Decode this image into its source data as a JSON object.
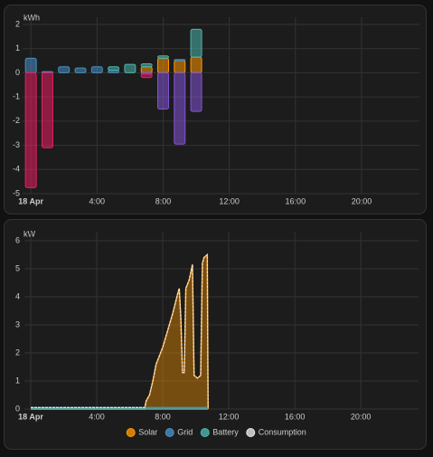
{
  "chart_data": [
    {
      "type": "bar",
      "y_label": "kWh",
      "categories": [
        "18 Apr",
        null,
        null,
        null,
        "4:00",
        null,
        null,
        null,
        "8:00",
        null,
        null,
        null,
        "12:00",
        null,
        null,
        null,
        "16:00",
        null,
        null,
        null,
        "20:00",
        null,
        null,
        null
      ],
      "ylim": [
        -5,
        2
      ],
      "yticks": [
        -5,
        -4,
        -3,
        -2,
        -1,
        0,
        1,
        2
      ],
      "grid": true,
      "series": [
        {
          "color": "#ff9800",
          "values": [
            0,
            0,
            0,
            0,
            0,
            0,
            0,
            0.25,
            0.6,
            0.5,
            0.65,
            null,
            null,
            null,
            null,
            null,
            null,
            null,
            null,
            null,
            null,
            null,
            null,
            null
          ]
        },
        {
          "color": "#488fc2",
          "values": [
            0.6,
            0.05,
            0.25,
            0.2,
            0.25,
            0.1,
            0,
            0,
            0,
            0.05,
            0,
            null,
            null,
            null,
            null,
            null,
            null,
            null,
            null,
            null,
            null,
            null,
            null,
            null
          ]
        },
        {
          "color": "#4db6ac",
          "values": [
            0,
            0,
            0,
            0,
            0,
            0.15,
            0.35,
            0.12,
            0.1,
            0,
            1.15,
            null,
            null,
            null,
            null,
            null,
            null,
            null,
            null,
            null,
            null,
            null,
            null,
            null
          ]
        },
        {
          "color": "#8353d4",
          "values": [
            0,
            0,
            0,
            0,
            0,
            0,
            0,
            -0.05,
            -1.5,
            -2.95,
            -1.6,
            null,
            null,
            null,
            null,
            null,
            null,
            null,
            null,
            null,
            null,
            null,
            null,
            null
          ]
        },
        {
          "color": "#e91e63",
          "values": [
            -4.75,
            -3.1,
            0,
            0,
            0,
            0,
            0,
            -0.15,
            0,
            0,
            0,
            null,
            null,
            null,
            null,
            null,
            null,
            null,
            null,
            null,
            null,
            null,
            null,
            null
          ]
        }
      ]
    },
    {
      "type": "area",
      "y_label": "kW",
      "x": [
        0,
        6.9,
        7.0,
        7.2,
        7.4,
        7.6,
        7.8,
        8.0,
        8.3,
        8.6,
        8.9,
        9.0,
        9.1,
        9.2,
        9.3,
        9.4,
        9.6,
        9.8,
        9.9,
        10.1,
        10.3,
        10.4,
        10.5,
        10.7,
        10.75
      ],
      "xlim": [
        0,
        23.5
      ],
      "xticks": [
        {
          "value": 0,
          "label": "18 Apr"
        },
        {
          "value": 4,
          "label": "4:00"
        },
        {
          "value": 8,
          "label": "8:00"
        },
        {
          "value": 12,
          "label": "12:00"
        },
        {
          "value": 16,
          "label": "16:00"
        },
        {
          "value": 20,
          "label": "20:00"
        }
      ],
      "ylim": [
        0,
        6
      ],
      "yticks": [
        0,
        1,
        2,
        3,
        4,
        5,
        6
      ],
      "grid": true,
      "series": [
        {
          "name": "Solar",
          "color": "#ff9800",
          "values": [
            0,
            0,
            0.3,
            0.5,
            1.0,
            1.6,
            1.9,
            2.2,
            2.8,
            3.4,
            4.1,
            4.3,
            3.2,
            1.3,
            1.3,
            4.3,
            4.6,
            5.15,
            1.2,
            1.1,
            1.2,
            5.2,
            5.4,
            5.5,
            0
          ]
        },
        {
          "name": "Grid",
          "color": "#488fc2",
          "values": [
            0.05,
            0.05,
            0.05,
            0.05,
            0.05,
            0.05,
            0.05,
            0.05,
            0.05,
            0.05,
            0.05,
            0.05,
            0.05,
            0.05,
            0.05,
            0.05,
            0.05,
            0.05,
            0.05,
            0.05,
            0.05,
            0.05,
            0.05,
            0.05,
            0.05
          ]
        },
        {
          "name": "Battery",
          "color": "#4db6ac",
          "values": [
            0,
            0,
            0,
            0,
            0,
            0,
            0,
            0,
            0,
            0,
            0,
            0,
            0,
            0,
            0,
            0,
            0,
            0,
            0,
            0,
            0,
            0,
            0,
            0,
            0
          ]
        },
        {
          "name": "Consumption",
          "color": "#e8e8e8",
          "values": [
            0.05,
            0.05,
            0.3,
            0.5,
            1.0,
            1.6,
            1.9,
            2.2,
            2.8,
            3.4,
            4.1,
            4.3,
            3.2,
            1.3,
            1.3,
            4.3,
            4.6,
            5.15,
            1.2,
            1.1,
            1.2,
            5.2,
            5.4,
            5.5,
            0.05
          ]
        }
      ]
    }
  ]
}
